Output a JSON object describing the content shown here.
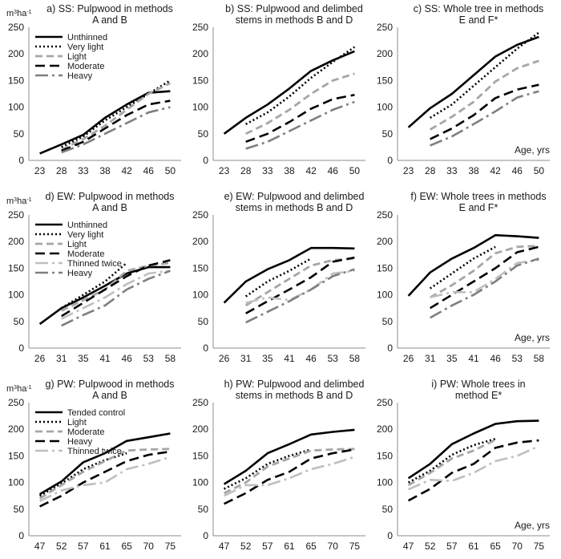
{
  "y_unit": "m³ha⁻¹",
  "chart_data": [
    {
      "type": "line",
      "title_lines": [
        "a) SS: Pulpwood in methods",
        "A and B"
      ],
      "xlabel": "",
      "ylabel": "m³ha⁻¹",
      "ylim": [
        0,
        250
      ],
      "yticks": [
        0,
        50,
        100,
        150,
        200,
        250
      ],
      "x": [
        23,
        28,
        33,
        38,
        42,
        46,
        50
      ],
      "x_tick_labels": [
        "23",
        "28",
        "33",
        "38",
        "42",
        "46",
        "50"
      ],
      "legend_position": "top-left",
      "series": [
        {
          "name": "Unthinned",
          "style": "unthinned",
          "values": [
            13,
            30,
            48,
            80,
            105,
            127,
            130
          ]
        },
        {
          "name": "Very light",
          "style": "verylight",
          "values": [
            null,
            25,
            45,
            75,
            100,
            125,
            150
          ]
        },
        {
          "name": "Light",
          "style": "light",
          "values": [
            null,
            20,
            40,
            65,
            95,
            125,
            145
          ]
        },
        {
          "name": "Moderate",
          "style": "moderate",
          "values": [
            null,
            18,
            35,
            60,
            85,
            105,
            112
          ]
        },
        {
          "name": "Heavy",
          "style": "heavy",
          "values": [
            null,
            15,
            30,
            50,
            70,
            90,
            100
          ]
        }
      ]
    },
    {
      "type": "line",
      "title_lines": [
        "b) SS: Pulpwood and delimbed",
        "stems in methods B and D"
      ],
      "xlabel": "",
      "ylim": [
        0,
        250
      ],
      "yticks": [
        0,
        50,
        100,
        150,
        200,
        250
      ],
      "x": [
        23,
        28,
        33,
        38,
        42,
        46,
        50
      ],
      "x_tick_labels": [
        "23",
        "28",
        "33",
        "38",
        "42",
        "46",
        "50"
      ],
      "series": [
        {
          "style": "unthinned",
          "values": [
            50,
            80,
            105,
            135,
            168,
            188,
            205
          ]
        },
        {
          "style": "verylight",
          "values": [
            null,
            68,
            90,
            120,
            155,
            185,
            213
          ]
        },
        {
          "style": "light",
          "values": [
            null,
            50,
            70,
            95,
            125,
            150,
            163
          ]
        },
        {
          "style": "moderate",
          "values": [
            null,
            35,
            50,
            72,
            97,
            115,
            123
          ]
        },
        {
          "style": "heavy",
          "values": [
            null,
            22,
            35,
            55,
            75,
            95,
            110
          ]
        }
      ]
    },
    {
      "type": "line",
      "title_lines": [
        "c) SS: Whole tree in methods",
        "E and F*"
      ],
      "xlabel": "Age, yrs",
      "ylim": [
        0,
        250
      ],
      "yticks": [
        0,
        50,
        100,
        150,
        200,
        250
      ],
      "x": [
        23,
        28,
        33,
        38,
        42,
        46,
        50
      ],
      "x_tick_labels": [
        "23",
        "28",
        "33",
        "38",
        "42",
        "46",
        "50"
      ],
      "series": [
        {
          "style": "unthinned",
          "values": [
            62,
            98,
            125,
            160,
            195,
            217,
            232
          ]
        },
        {
          "style": "verylight",
          "values": [
            null,
            80,
            105,
            140,
            175,
            210,
            240
          ]
        },
        {
          "style": "light",
          "values": [
            null,
            58,
            82,
            110,
            148,
            173,
            187
          ]
        },
        {
          "style": "moderate",
          "values": [
            null,
            40,
            60,
            85,
            117,
            133,
            142
          ]
        },
        {
          "style": "heavy",
          "values": [
            null,
            28,
            45,
            68,
            92,
            118,
            130
          ]
        }
      ]
    },
    {
      "type": "line",
      "title_lines": [
        "d) EW: Pulpwood in methods",
        "A and B"
      ],
      "xlabel": "",
      "ylim": [
        0,
        250
      ],
      "yticks": [
        0,
        50,
        100,
        150,
        200,
        250
      ],
      "x": [
        26,
        31,
        35,
        41,
        46,
        53,
        58
      ],
      "x_tick_labels": [
        "26",
        "31",
        "35",
        "41",
        "46",
        "53",
        "58"
      ],
      "legend_position": "top-left",
      "series": [
        {
          "name": "Unthinned",
          "style": "unthinned",
          "values": [
            45,
            75,
            95,
            117,
            140,
            152,
            152
          ]
        },
        {
          "name": "Very light",
          "style": "verylight",
          "values": [
            null,
            75,
            100,
            125,
            160,
            null,
            null
          ]
        },
        {
          "name": "Light",
          "style": "light",
          "values": [
            null,
            70,
            90,
            110,
            145,
            155,
            160
          ]
        },
        {
          "name": "Moderate",
          "style": "moderate",
          "values": [
            null,
            60,
            85,
            110,
            135,
            155,
            165
          ]
        },
        {
          "name": "Thinned twice",
          "style": "twice",
          "values": [
            null,
            55,
            75,
            95,
            120,
            140,
            145
          ]
        },
        {
          "name": "Heavy",
          "style": "heavy",
          "values": [
            null,
            42,
            62,
            80,
            110,
            130,
            145
          ]
        }
      ]
    },
    {
      "type": "line",
      "title_lines": [
        "e) EW: Pulpwood and delimbed",
        "stems in methods B and D"
      ],
      "xlabel": "",
      "ylim": [
        0,
        250
      ],
      "yticks": [
        0,
        50,
        100,
        150,
        200,
        250
      ],
      "x": [
        26,
        31,
        35,
        41,
        46,
        53,
        58
      ],
      "x_tick_labels": [
        "26",
        "31",
        "35",
        "41",
        "46",
        "53",
        "58"
      ],
      "series": [
        {
          "style": "unthinned",
          "values": [
            85,
            125,
            148,
            165,
            188,
            188,
            187
          ]
        },
        {
          "style": "verylight",
          "values": [
            null,
            97,
            125,
            145,
            168,
            null,
            null
          ]
        },
        {
          "style": "light",
          "values": [
            null,
            80,
            105,
            130,
            155,
            165,
            168
          ]
        },
        {
          "style": "moderate",
          "values": [
            null,
            65,
            88,
            110,
            133,
            162,
            170
          ]
        },
        {
          "style": "twice",
          "values": [
            null,
            85,
            95,
            90,
            110,
            140,
            145
          ]
        },
        {
          "style": "heavy",
          "values": [
            null,
            48,
            68,
            88,
            110,
            135,
            148
          ]
        }
      ]
    },
    {
      "type": "line",
      "title_lines": [
        "f) EW: Whole trees in methods",
        "E and F*"
      ],
      "xlabel": "Age, yrs",
      "ylim": [
        0,
        250
      ],
      "yticks": [
        0,
        50,
        100,
        150,
        200,
        250
      ],
      "x": [
        26,
        31,
        35,
        41,
        46,
        53,
        58
      ],
      "x_tick_labels": [
        "26",
        "31",
        "35",
        "41",
        "46",
        "53",
        "58"
      ],
      "series": [
        {
          "style": "unthinned",
          "values": [
            98,
            142,
            168,
            188,
            212,
            210,
            207
          ]
        },
        {
          "style": "verylight",
          "values": [
            null,
            112,
            140,
            168,
            190,
            null,
            null
          ]
        },
        {
          "style": "light",
          "values": [
            null,
            95,
            118,
            145,
            178,
            190,
            192
          ]
        },
        {
          "style": "moderate",
          "values": [
            null,
            75,
            100,
            125,
            150,
            180,
            190
          ]
        },
        {
          "style": "twice",
          "values": [
            null,
            95,
            105,
            105,
            130,
            160,
            165
          ]
        },
        {
          "style": "heavy",
          "values": [
            null,
            57,
            80,
            100,
            125,
            155,
            168
          ]
        }
      ]
    },
    {
      "type": "line",
      "title_lines": [
        "g) PW: Pulpwood in methods",
        "A and B"
      ],
      "xlabel": "",
      "ylim": [
        0,
        250
      ],
      "yticks": [
        0,
        50,
        100,
        150,
        200,
        250
      ],
      "x": [
        47,
        52,
        57,
        61,
        65,
        70,
        75
      ],
      "x_tick_labels": [
        "47",
        "52",
        "57",
        "61",
        "65",
        "70",
        "75"
      ],
      "legend_position": "top-left",
      "series": [
        {
          "name": "Tended control",
          "style": "unthinned",
          "values": [
            78,
            102,
            138,
            155,
            178,
            185,
            192
          ]
        },
        {
          "name": "Light",
          "style": "verylight",
          "values": [
            75,
            98,
            125,
            142,
            155,
            null,
            null
          ]
        },
        {
          "name": "Moderate",
          "style": "light",
          "values": [
            70,
            95,
            120,
            140,
            160,
            162,
            163
          ]
        },
        {
          "name": "Heavy",
          "style": "moderate",
          "values": [
            55,
            75,
            100,
            120,
            140,
            152,
            158
          ]
        },
        {
          "name": "Thinned twice",
          "style": "twice",
          "values": [
            65,
            85,
            95,
            100,
            125,
            135,
            148
          ]
        }
      ]
    },
    {
      "type": "line",
      "title_lines": [
        "h) PW: Pulpwood and delimbed",
        "stems in methods B and D"
      ],
      "xlabel": "",
      "ylim": [
        0,
        250
      ],
      "yticks": [
        0,
        50,
        100,
        150,
        200,
        250
      ],
      "x": [
        47,
        52,
        57,
        61,
        65,
        70,
        75
      ],
      "x_tick_labels": [
        "47",
        "52",
        "57",
        "61",
        "65",
        "70",
        "75"
      ],
      "series": [
        {
          "style": "unthinned",
          "values": [
            97,
            122,
            155,
            172,
            190,
            195,
            199
          ]
        },
        {
          "style": "verylight",
          "values": [
            88,
            108,
            135,
            150,
            162,
            null,
            null
          ]
        },
        {
          "style": "light",
          "values": [
            80,
            100,
            130,
            145,
            160,
            162,
            163
          ]
        },
        {
          "style": "moderate",
          "values": [
            60,
            80,
            105,
            120,
            145,
            155,
            162
          ]
        },
        {
          "style": "twice",
          "values": [
            75,
            95,
            95,
            108,
            125,
            135,
            148
          ]
        }
      ]
    },
    {
      "type": "line",
      "title_lines": [
        "i) PW: Whole trees in",
        "method E*"
      ],
      "xlabel": "Age, yrs",
      "ylim": [
        0,
        250
      ],
      "yticks": [
        0,
        50,
        100,
        150,
        200,
        250
      ],
      "x": [
        47,
        52,
        57,
        61,
        65,
        70,
        75
      ],
      "x_tick_labels": [
        "47",
        "52",
        "57",
        "61",
        "65",
        "70",
        "75"
      ],
      "series": [
        {
          "style": "unthinned",
          "values": [
            108,
            135,
            172,
            192,
            210,
            215,
            216
          ]
        },
        {
          "style": "verylight",
          "values": [
            100,
            122,
            152,
            170,
            182,
            null,
            null
          ]
        },
        {
          "style": "light",
          "values": [
            95,
            118,
            145,
            160,
            180,
            null,
            null
          ]
        },
        {
          "style": "moderate",
          "values": [
            66,
            88,
            118,
            135,
            165,
            175,
            179
          ]
        },
        {
          "style": "twice",
          "values": [
            87,
            105,
            103,
            118,
            140,
            150,
            168
          ]
        }
      ]
    }
  ],
  "line_styles": {
    "unthinned": {
      "color": "#000000",
      "dash": "",
      "width": 2.6
    },
    "verylight": {
      "color": "#000000",
      "dash": "2 3",
      "width": 2.6
    },
    "light": {
      "color": "#a6a6a6",
      "dash": "9 5",
      "width": 2.8
    },
    "moderate": {
      "color": "#000000",
      "dash": "12 6",
      "width": 2.6
    },
    "heavy": {
      "color": "#7f7f7f",
      "dash": "16 5 3 5",
      "width": 2.6
    },
    "twice": {
      "color": "#bfbfbf",
      "dash": "16 5 3 5",
      "width": 2.6
    }
  },
  "axis_color": "#8c8c8c",
  "grid": false
}
